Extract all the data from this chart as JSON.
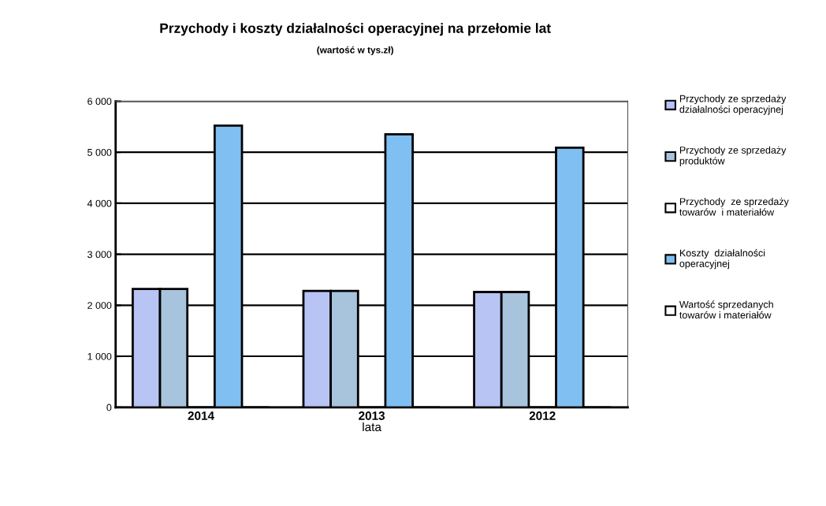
{
  "chart_data": {
    "type": "bar",
    "title": "Przychody i koszty działalności operacyjnej na przełomie lat",
    "subtitle": "(wartość w tys.zł)",
    "xlabel": "lata",
    "categories": [
      "2014",
      "2013",
      "2012"
    ],
    "series": [
      {
        "name": "Przychody ze sprzedaży\ndziałalności operacyjnej",
        "color": "#b8c4f4",
        "values": [
          2320,
          2280,
          2260
        ]
      },
      {
        "name": "Przychody ze sprzedaży\nproduktów",
        "color": "#a8c4dc",
        "values": [
          2320,
          2280,
          2260
        ]
      },
      {
        "name": "Przychody  ze sprzedaży\ntowarów  i materiałów",
        "color": "#ffffff",
        "values": [
          0,
          0,
          null
        ]
      },
      {
        "name": "Koszty  działalności\noperacyjnej",
        "color": "#80bff2",
        "values": [
          5520,
          5350,
          5090
        ]
      },
      {
        "name": "Wartość sprzedanych\ntowarów i materiałów",
        "color": "#ffffff",
        "values": [
          0,
          0,
          null
        ]
      }
    ],
    "ylim": [
      0,
      6000
    ],
    "yticks": [
      {
        "value": 0,
        "label": "0"
      },
      {
        "value": 1000,
        "label": "1 000"
      },
      {
        "value": 2000,
        "label": "2 000"
      },
      {
        "value": 3000,
        "label": "3 000"
      },
      {
        "value": 4000,
        "label": "4 000"
      },
      {
        "value": 5000,
        "label": "5 000"
      },
      {
        "value": 6000,
        "label": "6 000"
      }
    ],
    "grid": "y",
    "legend": "right"
  }
}
